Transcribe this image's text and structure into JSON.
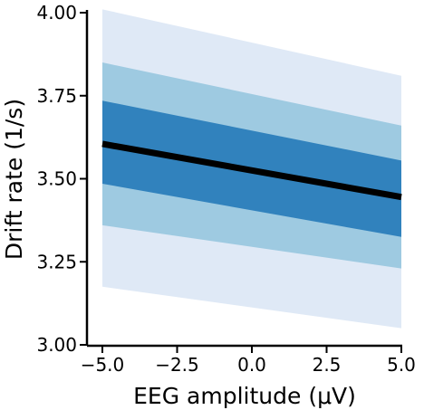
{
  "chart_data": {
    "type": "area",
    "xlabel": "EEG amplitude (μV)",
    "ylabel": "Drift rate (1/s)",
    "xlim": [
      -5.0,
      5.0
    ],
    "ylim": [
      3.0,
      4.0
    ],
    "xticks": [
      -5.0,
      -2.5,
      0.0,
      2.5,
      5.0
    ],
    "xtick_labels": [
      "−5.0",
      "−2.5",
      "0.0",
      "2.5",
      "5.0"
    ],
    "yticks": [
      3.0,
      3.25,
      3.5,
      3.75,
      4.0
    ],
    "ytick_labels": [
      "3.00",
      "3.25",
      "3.50",
      "3.75",
      "4.00"
    ],
    "grid": false,
    "x": [
      -5.0,
      5.0
    ],
    "line": {
      "values": [
        3.605,
        3.445
      ],
      "color": "#000000"
    },
    "bands": [
      {
        "lower": [
          3.175,
          3.05
        ],
        "upper": [
          4.01,
          3.81
        ],
        "color": "#dfe9f6"
      },
      {
        "lower": [
          3.36,
          3.23
        ],
        "upper": [
          3.85,
          3.66
        ],
        "color": "#9ecae1"
      },
      {
        "lower": [
          3.485,
          3.325
        ],
        "upper": [
          3.735,
          3.555
        ],
        "color": "#3182bd"
      }
    ]
  }
}
